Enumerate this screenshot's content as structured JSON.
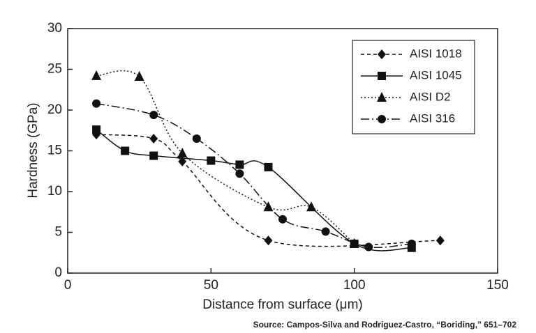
{
  "chart_data": {
    "type": "line",
    "xlabel": "Distance from surface (μm)",
    "ylabel": "Hardness (GPa)",
    "source": "Source:   Campos-Silva and Rodriguez-Castro, “Boriding,” 651–702",
    "xlim": [
      0,
      150
    ],
    "xticks": [
      0,
      50,
      100,
      150
    ],
    "ylim": [
      0,
      30
    ],
    "yticks": [
      0,
      5,
      10,
      15,
      20,
      25,
      30
    ],
    "legend": "upper right",
    "series": [
      {
        "name": "AISI 1018",
        "color": "#111111",
        "marker": "diamond",
        "dash": "5 4",
        "x": [
          10,
          30,
          40,
          70,
          130
        ],
        "values": [
          17,
          16.5,
          13.7,
          4,
          4
        ]
      },
      {
        "name": "AISI 1045",
        "color": "#111111",
        "marker": "square",
        "dash": "none",
        "x": [
          10,
          20,
          30,
          50,
          60,
          70,
          100,
          120
        ],
        "values": [
          17.6,
          15,
          14.4,
          13.8,
          13.3,
          13,
          3.6,
          3.1
        ]
      },
      {
        "name": "AISI D2",
        "color": "#111111",
        "marker": "triangle",
        "dash": "2 3",
        "x": [
          10,
          25,
          40,
          70,
          85,
          100
        ],
        "values": [
          24.2,
          24.1,
          14.7,
          8.1,
          8.1,
          3.6
        ]
      },
      {
        "name": "AISI 316",
        "color": "#111111",
        "marker": "circle",
        "dash": "12 4 2 4",
        "x": [
          10,
          30,
          45,
          60,
          75,
          90,
          105,
          120
        ],
        "values": [
          20.8,
          19.4,
          16.5,
          12.2,
          6.6,
          5.1,
          3.2,
          3.6
        ]
      }
    ]
  }
}
